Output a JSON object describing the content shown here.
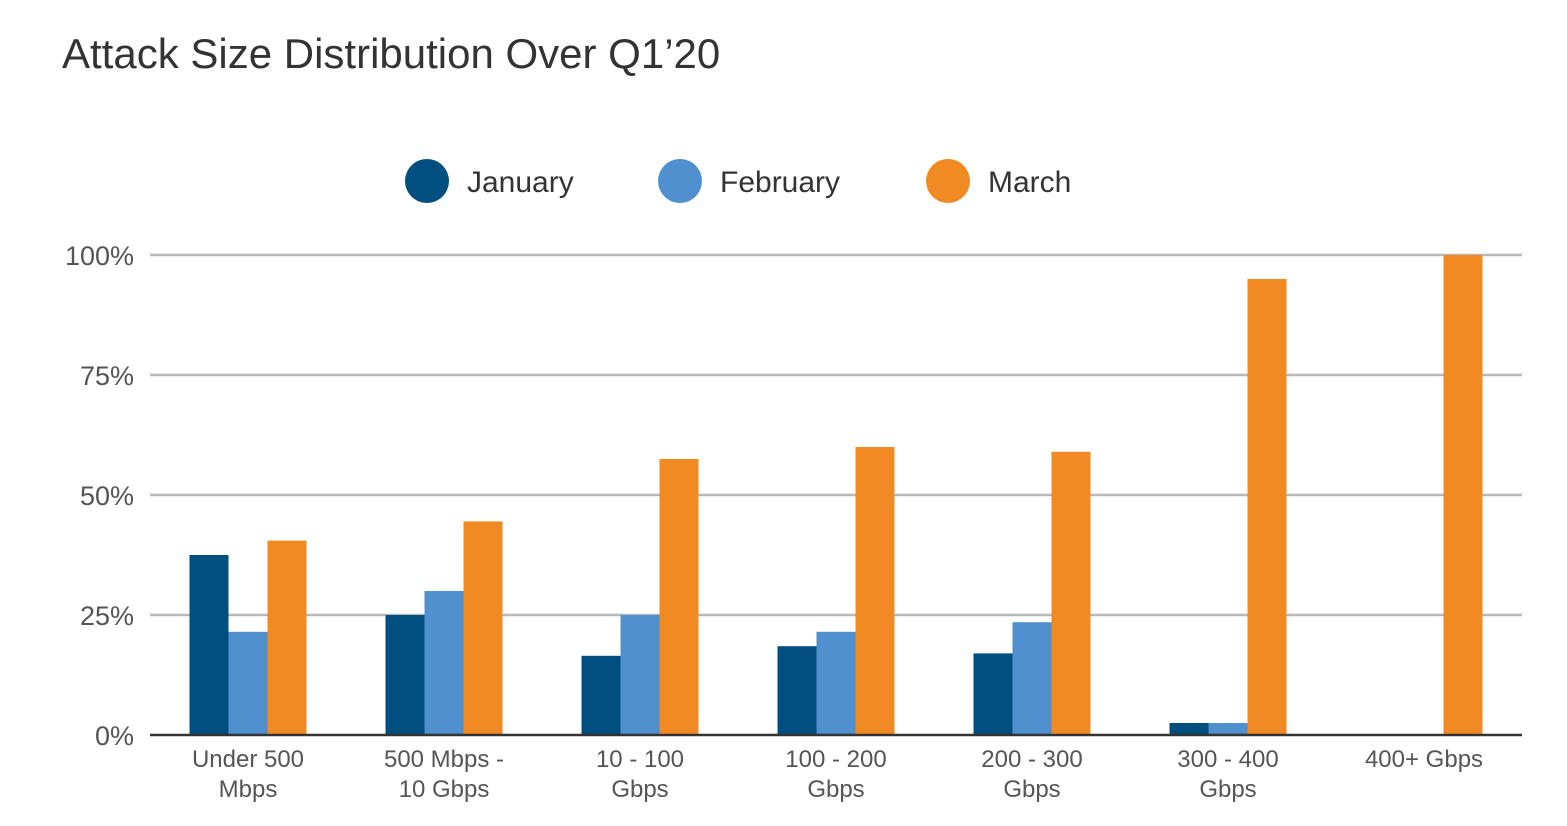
{
  "chart_data": {
    "type": "bar",
    "title": "Attack Size Distribution Over Q1’20",
    "categories": [
      [
        "Under 500",
        "Mbps"
      ],
      [
        "500 Mbps -",
        "10 Gbps"
      ],
      [
        "10 - 100",
        "Gbps"
      ],
      [
        "100 - 200",
        "Gbps"
      ],
      [
        "200 - 300",
        "Gbps"
      ],
      [
        "300 - 400",
        "Gbps"
      ],
      [
        "400+ Gbps"
      ]
    ],
    "series": [
      {
        "name": "January",
        "color": "#004f80",
        "values": [
          37.5,
          25,
          16.5,
          18.5,
          17,
          2.5,
          0
        ]
      },
      {
        "name": "February",
        "color": "#5190ce",
        "values": [
          21.5,
          30,
          25,
          21.5,
          23.5,
          2.5,
          0
        ]
      },
      {
        "name": "March",
        "color": "#f28a24",
        "values": [
          40.5,
          44.5,
          57.5,
          60,
          59,
          95,
          100
        ]
      }
    ],
    "yticks": [
      "0%",
      "25%",
      "50%",
      "75%",
      "100%"
    ],
    "ylim": [
      0,
      100
    ],
    "grid": true,
    "legend_position": "top-center",
    "xlabel": "",
    "ylabel": ""
  }
}
